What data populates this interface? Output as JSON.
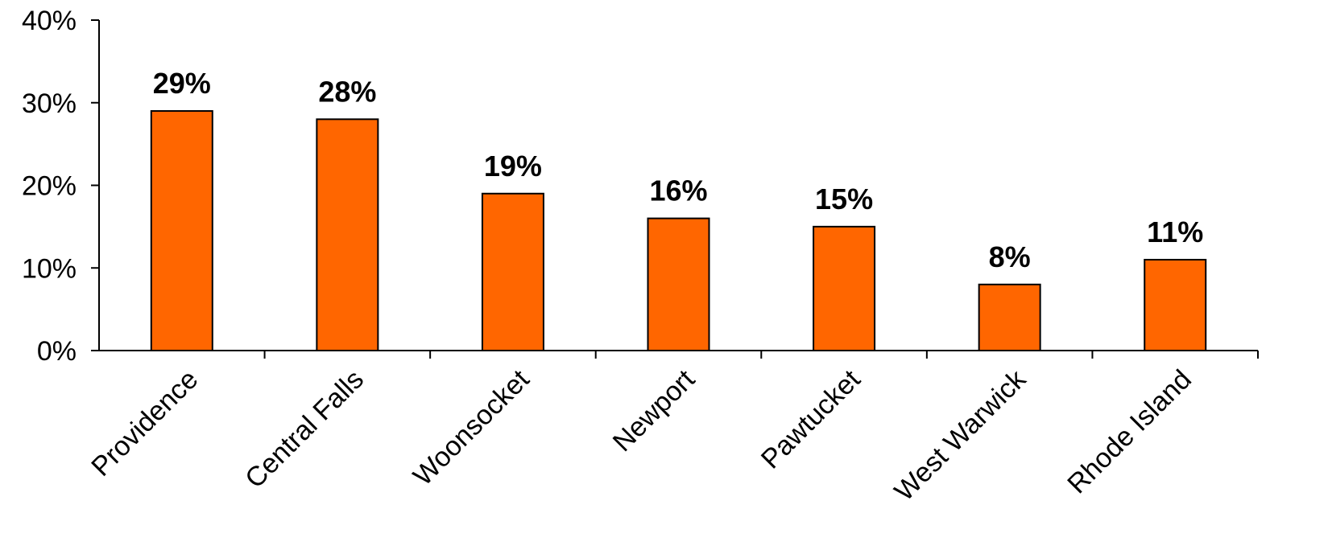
{
  "chart_data": {
    "type": "bar",
    "categories": [
      "Providence",
      "Central Falls",
      "Woonsocket",
      "Newport",
      "Pawtucket",
      "West Warwick",
      "Rhode Island"
    ],
    "values": [
      29,
      28,
      19,
      16,
      15,
      8,
      11
    ],
    "data_labels": [
      "29%",
      "28%",
      "19%",
      "16%",
      "15%",
      "8%",
      "11%"
    ],
    "title": "",
    "xlabel": "",
    "ylabel": "",
    "ylim": [
      0,
      40
    ],
    "y_ticks": [
      0,
      10,
      20,
      30,
      40
    ],
    "y_tick_labels": [
      "0%",
      "10%",
      "20%",
      "30%",
      "40%"
    ],
    "grid": false,
    "legend": "none",
    "bar_color": "#FF6600",
    "bar_edge_color": "#000000"
  }
}
